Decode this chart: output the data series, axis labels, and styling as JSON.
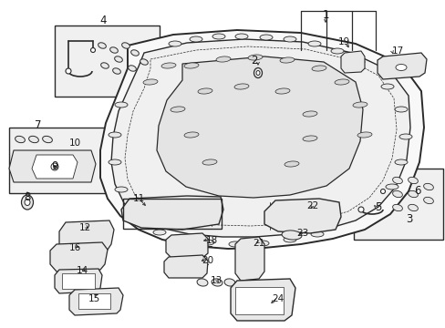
{
  "bg_color": "#ffffff",
  "line_color": "#2a2a2a",
  "label_color": "#1a1a1a",
  "box_fill": "#f0f0f0",
  "part_fill": "#e8e8e8",
  "figsize": [
    4.89,
    3.6
  ],
  "dpi": 100,
  "labels": [
    [
      "1",
      357,
      17
    ],
    [
      "2",
      279,
      67
    ],
    [
      "3",
      449,
      241
    ],
    [
      "4",
      113,
      22
    ],
    [
      "5",
      415,
      228
    ],
    [
      "6",
      458,
      210
    ],
    [
      "7",
      42,
      138
    ],
    [
      "8",
      30,
      217
    ],
    [
      "9",
      60,
      183
    ],
    [
      "10",
      82,
      157
    ],
    [
      "11",
      152,
      218
    ],
    [
      "12",
      93,
      250
    ],
    [
      "13",
      237,
      308
    ],
    [
      "14",
      90,
      297
    ],
    [
      "15",
      103,
      328
    ],
    [
      "16",
      82,
      272
    ],
    [
      "17",
      436,
      56
    ],
    [
      "18",
      232,
      264
    ],
    [
      "19",
      377,
      46
    ],
    [
      "20",
      228,
      286
    ],
    [
      "21",
      284,
      267
    ],
    [
      "22",
      343,
      226
    ],
    [
      "23",
      332,
      256
    ],
    [
      "24",
      305,
      328
    ]
  ]
}
